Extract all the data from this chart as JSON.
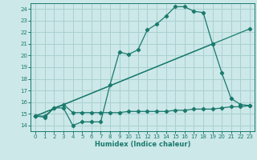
{
  "xlabel": "Humidex (Indice chaleur)",
  "bg_color": "#cce8e8",
  "grid_color": "#aad0d0",
  "line_color": "#1a7a6e",
  "xlim": [
    -0.5,
    23.5
  ],
  "ylim": [
    13.5,
    24.5
  ],
  "xticks": [
    0,
    1,
    2,
    3,
    4,
    5,
    6,
    7,
    8,
    9,
    10,
    11,
    12,
    13,
    14,
    15,
    16,
    17,
    18,
    19,
    20,
    21,
    22,
    23
  ],
  "yticks": [
    14,
    15,
    16,
    17,
    18,
    19,
    20,
    21,
    22,
    23,
    24
  ],
  "line1_x": [
    0,
    1,
    2,
    3,
    4,
    5,
    6,
    7,
    8,
    9,
    10,
    11,
    12,
    13,
    14,
    15,
    16,
    17,
    18,
    19,
    20,
    21,
    22,
    23
  ],
  "line1_y": [
    14.8,
    14.7,
    15.5,
    15.5,
    14.0,
    14.3,
    14.3,
    14.3,
    17.5,
    20.3,
    20.1,
    20.5,
    22.2,
    22.7,
    23.4,
    24.2,
    24.2,
    23.8,
    23.7,
    21.0,
    18.5,
    16.3,
    15.8,
    15.7
  ],
  "line2_x": [
    0,
    1,
    2,
    3,
    4,
    5,
    6,
    7,
    8,
    9,
    10,
    11,
    12,
    13,
    14,
    15,
    16,
    17,
    18,
    19,
    20,
    21,
    22,
    23
  ],
  "line2_y": [
    14.8,
    14.8,
    15.5,
    15.8,
    15.1,
    15.1,
    15.1,
    15.1,
    15.1,
    15.1,
    15.2,
    15.2,
    15.2,
    15.2,
    15.2,
    15.3,
    15.3,
    15.4,
    15.4,
    15.4,
    15.5,
    15.6,
    15.6,
    15.7
  ],
  "line3_x": [
    0,
    23
  ],
  "line3_y": [
    14.8,
    22.3
  ],
  "line4_x": [
    0,
    19
  ],
  "line4_y": [
    14.8,
    21.0
  ]
}
